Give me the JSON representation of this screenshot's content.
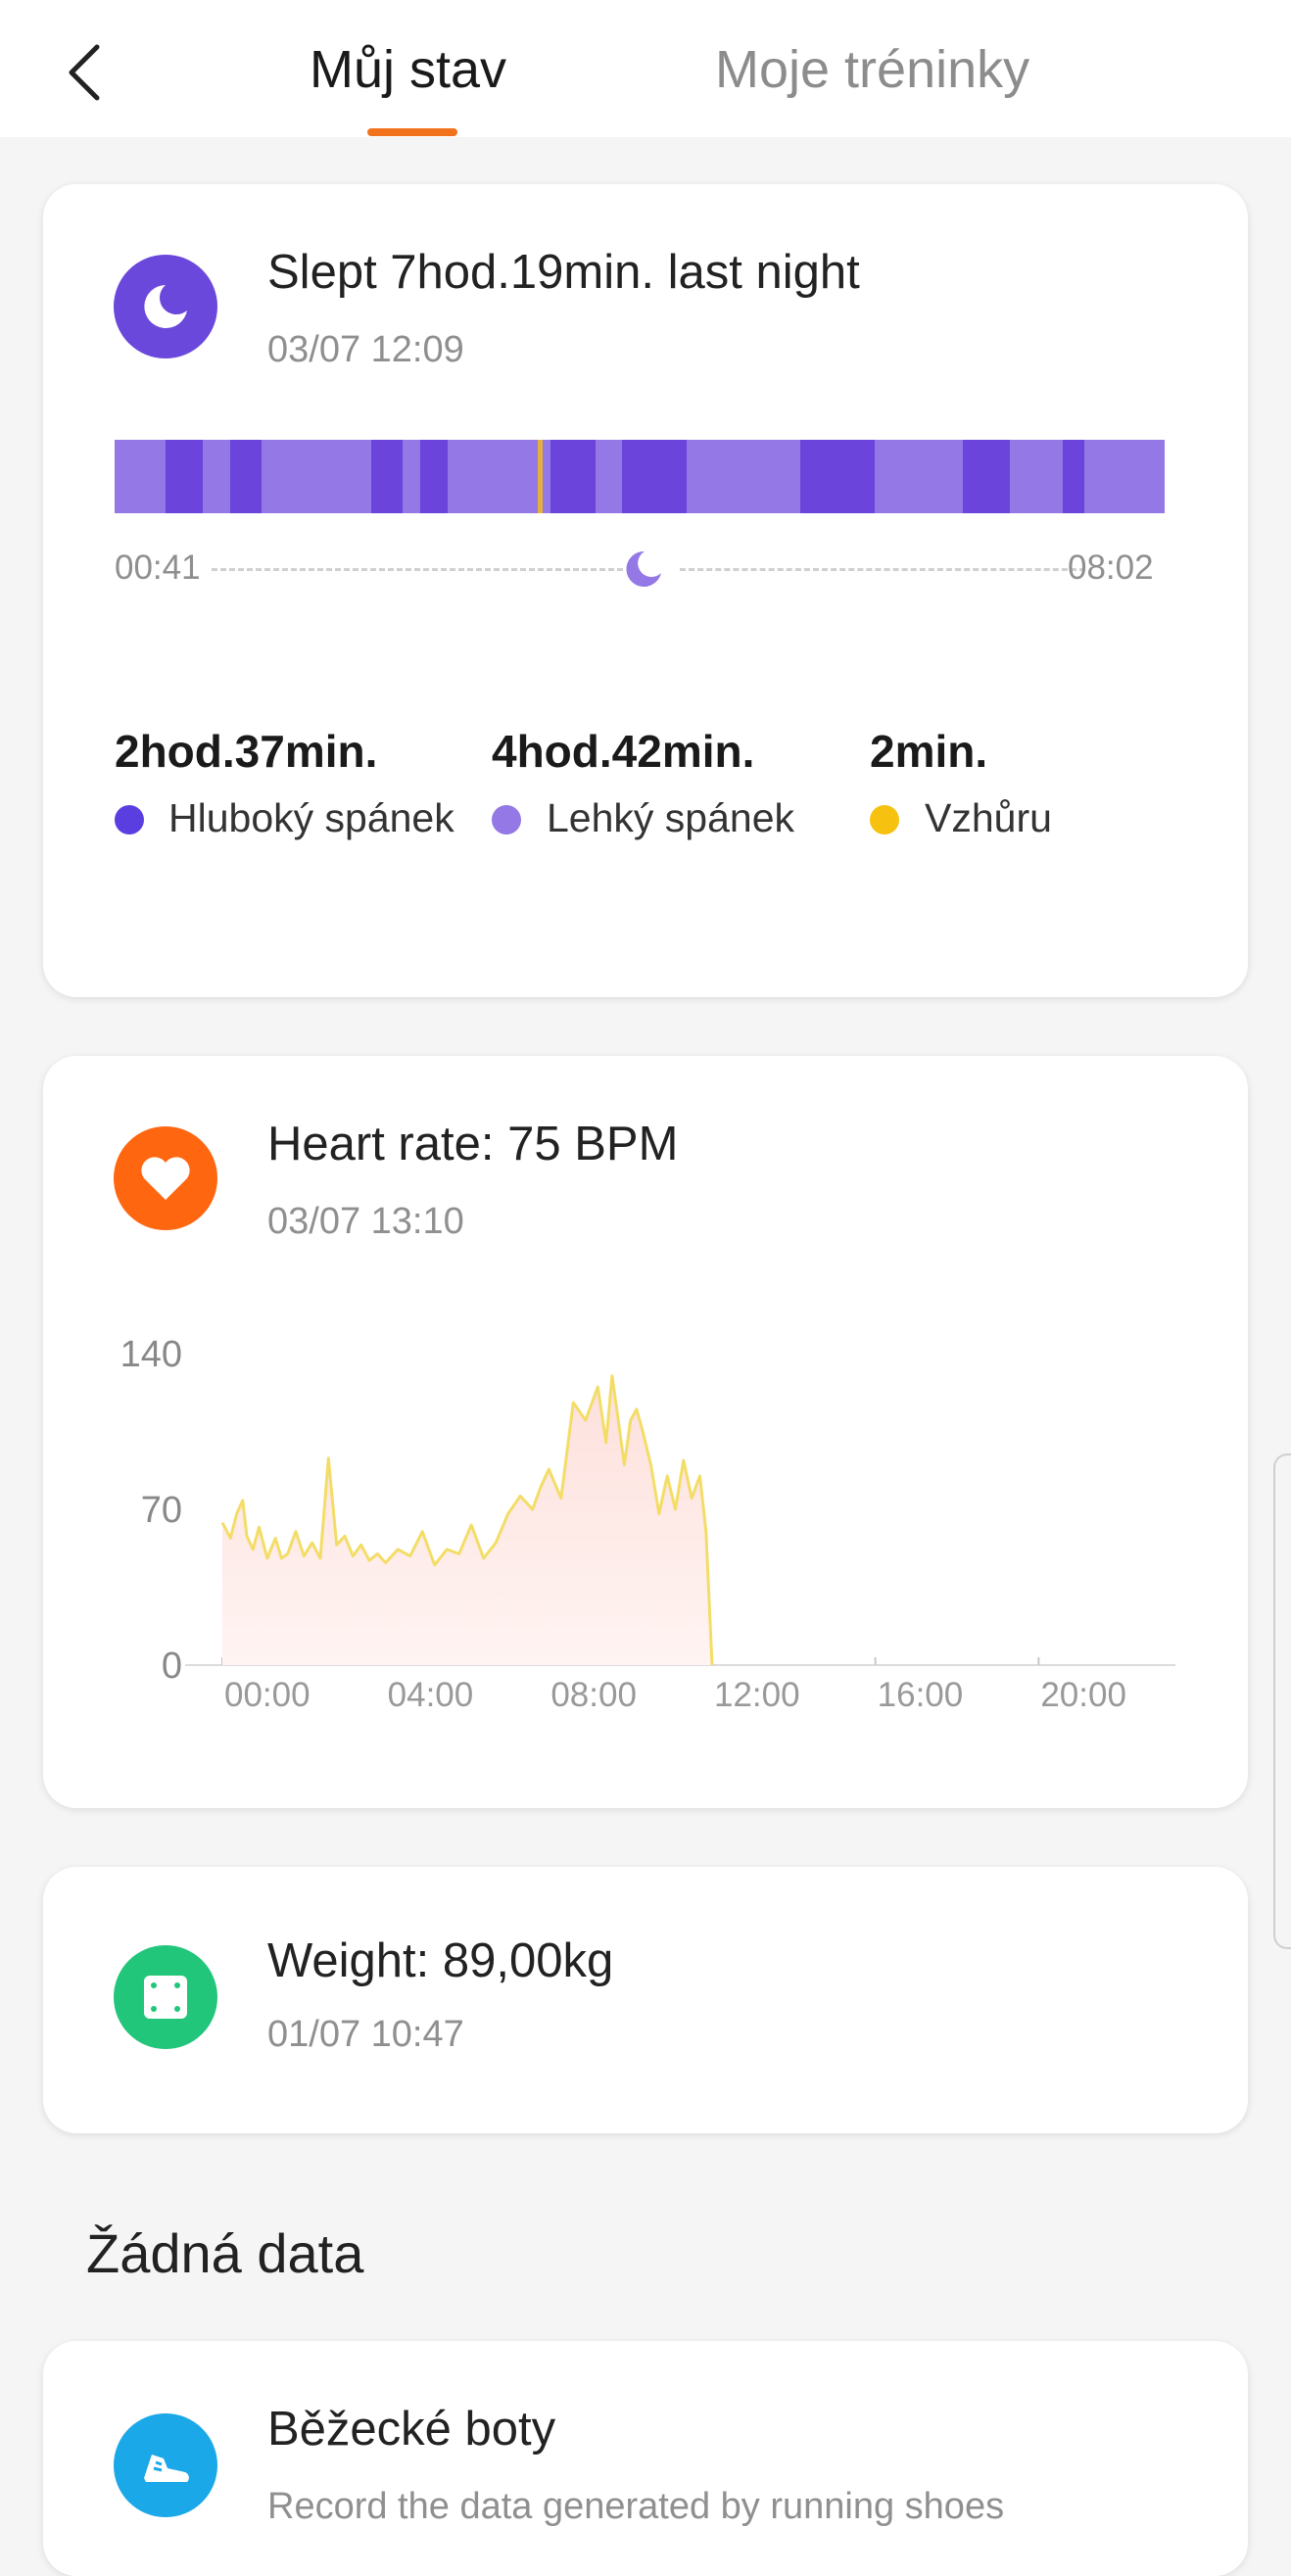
{
  "header": {
    "tabs": [
      {
        "label": "Můj stav",
        "active": true
      },
      {
        "label": "Moje tréninky",
        "active": false
      }
    ],
    "accent_color": "#f2711c"
  },
  "sleep": {
    "title": "Slept 7hod.19min. last night",
    "timestamp": "03/07 12:09",
    "start_time": "00:41",
    "end_time": "08:02",
    "stats": [
      {
        "value": "2hod.37min.",
        "label": "Hluboký spánek",
        "color": "#5b3ee0"
      },
      {
        "value": "4hod.42min.",
        "label": "Lehký spánek",
        "color": "#9378e6"
      },
      {
        "value": "2min.",
        "label": "Vzhůru",
        "color": "#f6c20f"
      }
    ]
  },
  "heart": {
    "title": "Heart rate: 75 BPM",
    "timestamp": "03/07 13:10",
    "chart_data": {
      "type": "area",
      "yticks": [
        "140",
        "70",
        "0"
      ],
      "xticks": [
        "00:00",
        "04:00",
        "08:00",
        "12:00",
        "16:00",
        "20:00"
      ],
      "ylim": [
        0,
        140
      ],
      "xlim": [
        0,
        24
      ],
      "x": [
        0.0,
        0.2,
        0.35,
        0.5,
        0.6,
        0.75,
        0.9,
        1.1,
        1.3,
        1.45,
        1.6,
        1.8,
        2.0,
        2.2,
        2.4,
        2.6,
        2.8,
        3.0,
        3.2,
        3.4,
        3.6,
        3.8,
        4.0,
        4.3,
        4.6,
        4.9,
        5.2,
        5.5,
        5.8,
        6.1,
        6.4,
        6.7,
        7.0,
        7.3,
        7.6,
        7.8,
        8.0,
        8.3,
        8.6,
        8.9,
        9.2,
        9.4,
        9.55,
        9.7,
        9.85,
        10.0,
        10.15,
        10.3,
        10.5,
        10.7,
        10.9,
        11.1,
        11.3,
        11.5,
        11.7,
        11.85,
        11.95,
        12.0
      ],
      "y": [
        64,
        57,
        68,
        74,
        58,
        52,
        62,
        48,
        57,
        48,
        50,
        60,
        49,
        55,
        48,
        93,
        54,
        58,
        49,
        54,
        47,
        50,
        46,
        52,
        49,
        60,
        45,
        52,
        50,
        63,
        48,
        55,
        68,
        76,
        70,
        80,
        88,
        75,
        118,
        110,
        125,
        100,
        130,
        110,
        90,
        110,
        115,
        105,
        90,
        68,
        85,
        70,
        92,
        75,
        85,
        60,
        20,
        0
      ]
    }
  },
  "weight": {
    "title": "Weight: 89,00kg",
    "timestamp": "01/07 10:47"
  },
  "no_data": {
    "section_title": "Žádná data",
    "shoes_title": "Běžecké boty",
    "shoes_sub": "Record the data generated by running shoes"
  }
}
